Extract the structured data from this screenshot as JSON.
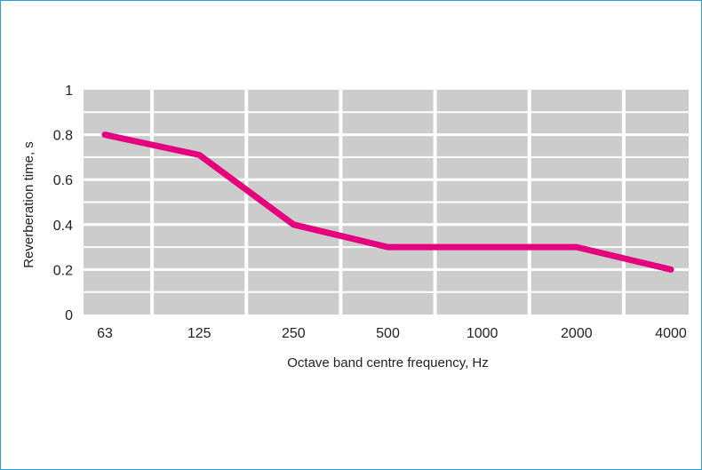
{
  "chart_data": {
    "type": "line",
    "title": "",
    "xlabel": "Octave band centre frequency, Hz",
    "ylabel": "Reverberation time, s",
    "categories": [
      "63",
      "125",
      "250",
      "500",
      "1000",
      "2000",
      "4000"
    ],
    "series": [
      {
        "values": [
          0.8,
          0.71,
          0.4,
          0.3,
          0.3,
          0.3,
          0.2
        ]
      }
    ],
    "ylim": [
      0,
      1
    ],
    "yticks": [
      "0",
      "0.2",
      "0.4",
      "0.6",
      "0.8",
      "1"
    ],
    "grid": true,
    "legend": "none",
    "colors": {
      "line": "#e5007e",
      "plot_background": "#cccccc",
      "gridlines": "#ffffff",
      "border": "#2a9fd6"
    }
  }
}
